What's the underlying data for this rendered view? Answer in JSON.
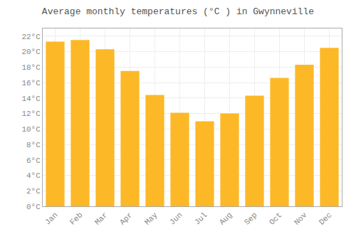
{
  "chart_data": {
    "type": "bar",
    "title": "Average monthly temperatures (°C ) in Gwynneville",
    "categories": [
      "Jan",
      "Feb",
      "Mar",
      "Apr",
      "May",
      "Jun",
      "Jul",
      "Aug",
      "Sep",
      "Oct",
      "Nov",
      "Dec"
    ],
    "values": [
      21.3,
      21.5,
      20.3,
      17.5,
      14.4,
      12.1,
      11.0,
      12.0,
      14.3,
      16.6,
      18.3,
      20.5
    ],
    "color": "#FDB827",
    "ylim": [
      0,
      23
    ],
    "yticks": [
      {
        "value": 0,
        "label": "0°C"
      },
      {
        "value": 2,
        "label": "2°C"
      },
      {
        "value": 4,
        "label": "4°C"
      },
      {
        "value": 6,
        "label": "6°C"
      },
      {
        "value": 8,
        "label": "8°C"
      },
      {
        "value": 10,
        "label": "10°C"
      },
      {
        "value": 12,
        "label": "12°C"
      },
      {
        "value": 14,
        "label": "14°C"
      },
      {
        "value": 16,
        "label": "16°C"
      },
      {
        "value": 18,
        "label": "18°C"
      },
      {
        "value": 20,
        "label": "20°C"
      },
      {
        "value": 22,
        "label": "22°C"
      }
    ],
    "grid": true
  }
}
